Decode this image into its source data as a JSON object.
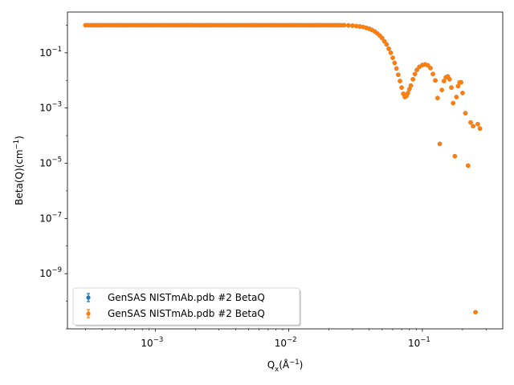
{
  "chart_data": {
    "type": "scatter",
    "title": "",
    "xlabel": {
      "base": "Q",
      "sub": "x",
      "rest": "(Å",
      "sup": "−1",
      "end": ")"
    },
    "ylabel": {
      "base": "Beta(Q)(cm",
      "sup": "−1",
      "end": ")"
    },
    "x_scale": "log",
    "y_scale": "log",
    "xlim": [
      0.00022,
      0.4
    ],
    "ylim": [
      1e-11,
      3
    ],
    "grid": false,
    "legend_placement": "lower-left",
    "x_ticks": [
      {
        "base": "10",
        "exp": "−3"
      },
      {
        "base": "10",
        "exp": "−2"
      },
      {
        "base": "10",
        "exp": "−1"
      }
    ],
    "y_ticks": [
      {
        "base": "10",
        "exp": "−9"
      },
      {
        "base": "10",
        "exp": "−7"
      },
      {
        "base": "10",
        "exp": "−5"
      },
      {
        "base": "10",
        "exp": "−3"
      },
      {
        "base": "10",
        "exp": "−1"
      }
    ],
    "series": [
      {
        "name": "GenSAS NISTmAb.pdb  #2 BetaQ",
        "color": "#1f77b4",
        "marker": "circle-errorbar",
        "points": [
          [
            0.0003,
            1.0
          ],
          [
            0.0004,
            1.0
          ],
          [
            0.0006,
            1.0
          ],
          [
            0.001,
            1.0
          ],
          [
            0.002,
            1.0
          ],
          [
            0.004,
            1.0
          ],
          [
            0.008,
            1.0
          ],
          [
            0.015,
            1.0
          ],
          [
            0.025,
            0.99
          ],
          [
            0.028,
            0.98
          ],
          [
            0.03,
            0.96
          ],
          [
            0.032,
            0.93
          ],
          [
            0.034,
            0.9
          ],
          [
            0.036,
            0.86
          ],
          [
            0.038,
            0.8
          ],
          [
            0.04,
            0.74
          ],
          [
            0.042,
            0.67
          ],
          [
            0.044,
            0.59
          ],
          [
            0.046,
            0.5
          ],
          [
            0.048,
            0.42
          ],
          [
            0.05,
            0.34
          ],
          [
            0.052,
            0.26
          ],
          [
            0.054,
            0.2
          ],
          [
            0.056,
            0.14
          ],
          [
            0.058,
            0.1
          ],
          [
            0.06,
            0.066
          ],
          [
            0.062,
            0.043
          ],
          [
            0.064,
            0.027
          ],
          [
            0.066,
            0.016
          ],
          [
            0.068,
            0.0095
          ],
          [
            0.07,
            0.0055
          ],
          [
            0.072,
            0.0033
          ],
          [
            0.074,
            0.0025
          ],
          [
            0.076,
            0.0027
          ],
          [
            0.078,
            0.0035
          ],
          [
            0.08,
            0.0048
          ],
          [
            0.082,
            0.0065
          ],
          [
            0.085,
            0.011
          ],
          [
            0.088,
            0.017
          ],
          [
            0.091,
            0.024
          ],
          [
            0.095,
            0.031
          ],
          [
            0.1,
            0.036
          ],
          [
            0.105,
            0.038
          ],
          [
            0.11,
            0.035
          ],
          [
            0.115,
            0.028
          ],
          [
            0.12,
            0.017
          ],
          [
            0.125,
            0.01
          ],
          [
            0.13,
            0.0023
          ],
          [
            0.135,
            5e-05
          ],
          [
            0.14,
            0.0045
          ],
          [
            0.145,
            0.0095
          ],
          [
            0.15,
            0.013
          ],
          [
            0.155,
            0.014
          ],
          [
            0.16,
            0.011
          ],
          [
            0.165,
            0.0055
          ],
          [
            0.17,
            0.0015
          ],
          [
            0.175,
            1.8e-05
          ],
          [
            0.18,
            0.0025
          ],
          [
            0.185,
            0.0062
          ],
          [
            0.19,
            0.0085
          ],
          [
            0.195,
            0.0085
          ],
          [
            0.2,
            0.0035
          ],
          [
            0.21,
            0.00065
          ],
          [
            0.22,
            8.2e-06
          ],
          [
            0.23,
            0.0003
          ],
          [
            0.24,
            0.00022
          ],
          [
            0.25,
            4e-11
          ],
          [
            0.26,
            0.00026
          ],
          [
            0.27,
            0.00018
          ]
        ]
      },
      {
        "name": "GenSAS NISTmAb.pdb  #2 BetaQ",
        "color": "#ff7f0e",
        "marker": "circle-errorbar",
        "points": "same-as-series-1"
      }
    ]
  }
}
